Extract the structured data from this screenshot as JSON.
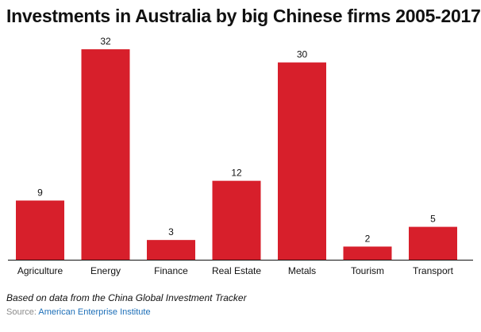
{
  "chart_data": {
    "type": "bar",
    "title": "Investments in Australia by big Chinese firms 2005-2017",
    "categories": [
      "Agriculture",
      "Energy",
      "Finance",
      "Real Estate",
      "Metals",
      "Tourism",
      "Transport"
    ],
    "values": [
      9,
      32,
      3,
      12,
      30,
      2,
      5
    ],
    "xlabel": "",
    "ylabel": "",
    "grid": false,
    "bar_color": "#d71f2b"
  },
  "footer": {
    "note": "Based on data from the China Global Investment Tracker",
    "source_label": "Source: ",
    "source_name": "American Enterprise Institute"
  },
  "colors": {
    "source_link": "#1d6fb8",
    "axis": "#111111"
  }
}
